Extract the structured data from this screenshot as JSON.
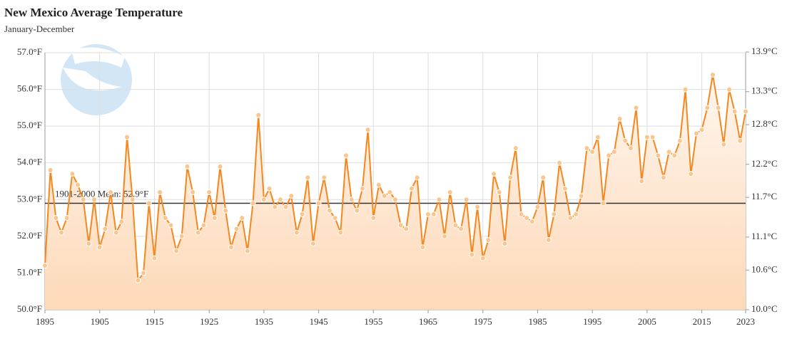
{
  "chart_data": {
    "type": "line",
    "title": "New Mexico Average Temperature",
    "subtitle": "January-December",
    "x": [
      1895,
      1896,
      1897,
      1898,
      1899,
      1900,
      1901,
      1902,
      1903,
      1904,
      1905,
      1906,
      1907,
      1908,
      1909,
      1910,
      1911,
      1912,
      1913,
      1914,
      1915,
      1916,
      1917,
      1918,
      1919,
      1920,
      1921,
      1922,
      1923,
      1924,
      1925,
      1926,
      1927,
      1928,
      1929,
      1930,
      1931,
      1932,
      1933,
      1934,
      1935,
      1936,
      1937,
      1938,
      1939,
      1940,
      1941,
      1942,
      1943,
      1944,
      1945,
      1946,
      1947,
      1948,
      1949,
      1950,
      1951,
      1952,
      1953,
      1954,
      1955,
      1956,
      1957,
      1958,
      1959,
      1960,
      1961,
      1962,
      1963,
      1964,
      1965,
      1966,
      1967,
      1968,
      1969,
      1970,
      1971,
      1972,
      1973,
      1974,
      1975,
      1976,
      1977,
      1978,
      1979,
      1980,
      1981,
      1982,
      1983,
      1984,
      1985,
      1986,
      1987,
      1988,
      1989,
      1990,
      1991,
      1992,
      1993,
      1994,
      1995,
      1996,
      1997,
      1998,
      1999,
      2000,
      2001,
      2002,
      2003,
      2004,
      2005,
      2006,
      2007,
      2008,
      2009,
      2010,
      2011,
      2012,
      2013,
      2014,
      2015,
      2016,
      2017,
      2018,
      2019,
      2020,
      2021,
      2022,
      2023
    ],
    "values": [
      51.2,
      53.8,
      52.5,
      52.1,
      52.5,
      53.7,
      53.4,
      53.0,
      51.8,
      53.0,
      51.7,
      52.2,
      53.2,
      52.1,
      52.4,
      54.7,
      53.0,
      50.8,
      51.0,
      52.9,
      51.4,
      53.2,
      52.5,
      52.3,
      51.6,
      52.0,
      53.9,
      53.2,
      52.1,
      52.3,
      53.2,
      52.5,
      53.9,
      52.7,
      51.7,
      52.2,
      52.5,
      51.6,
      52.9,
      55.3,
      53.0,
      53.3,
      52.8,
      53.0,
      52.8,
      53.1,
      52.1,
      52.6,
      53.6,
      51.8,
      52.9,
      53.6,
      52.7,
      52.5,
      52.1,
      54.2,
      53.0,
      52.7,
      53.3,
      54.9,
      52.5,
      53.4,
      53.1,
      53.2,
      53.0,
      52.3,
      52.2,
      53.3,
      53.6,
      51.7,
      52.6,
      52.6,
      53.0,
      52.0,
      53.2,
      52.3,
      52.2,
      53.0,
      51.5,
      52.8,
      51.4,
      51.9,
      53.7,
      53.2,
      51.8,
      53.6,
      54.4,
      52.6,
      52.5,
      52.4,
      52.8,
      53.6,
      51.9,
      52.6,
      54.0,
      53.3,
      52.5,
      52.6,
      53.1,
      54.4,
      54.3,
      54.7,
      52.9,
      54.2,
      54.3,
      55.2,
      54.6,
      54.4,
      55.5,
      53.5,
      54.7,
      54.7,
      54.2,
      53.6,
      54.3,
      54.2,
      54.6,
      56.0,
      53.7,
      54.8,
      54.9,
      55.5,
      56.4,
      55.5,
      54.5,
      56.0,
      55.4,
      54.6,
      55.4
    ],
    "color": "#f5871f",
    "xlim": [
      1895,
      2023
    ],
    "xticks": [
      1895,
      1905,
      1915,
      1925,
      1935,
      1945,
      1955,
      1965,
      1975,
      1985,
      1995,
      2005,
      2015,
      2023
    ],
    "ylim": [
      50,
      57
    ],
    "yticks": [
      {
        "value": 50,
        "label": "50.0°F"
      },
      {
        "value": 51,
        "label": "51.0°F"
      },
      {
        "value": 52,
        "label": "52.0°F"
      },
      {
        "value": 53,
        "label": "53.0°F"
      },
      {
        "value": 54,
        "label": "54.0°F"
      },
      {
        "value": 55,
        "label": "55.0°F"
      },
      {
        "value": 56,
        "label": "56.0°F"
      },
      {
        "value": 57,
        "label": "57.0°F"
      }
    ],
    "y2lim": [
      10,
      13.89
    ],
    "y2ticks": [
      {
        "value": 10.0,
        "label": "10.0°C"
      },
      {
        "value": 10.6,
        "label": "10.6°C"
      },
      {
        "value": 11.1,
        "label": "11.1°C"
      },
      {
        "value": 11.7,
        "label": "11.7°C"
      },
      {
        "value": 12.2,
        "label": "12.2°C"
      },
      {
        "value": 12.8,
        "label": "12.8°C"
      },
      {
        "value": 13.3,
        "label": "13.3°C"
      },
      {
        "value": 13.9,
        "label": "13.9°C"
      }
    ],
    "mean": {
      "value": 52.9,
      "label": "1901-2000 Mean: 52.9°F"
    },
    "grid": true
  }
}
